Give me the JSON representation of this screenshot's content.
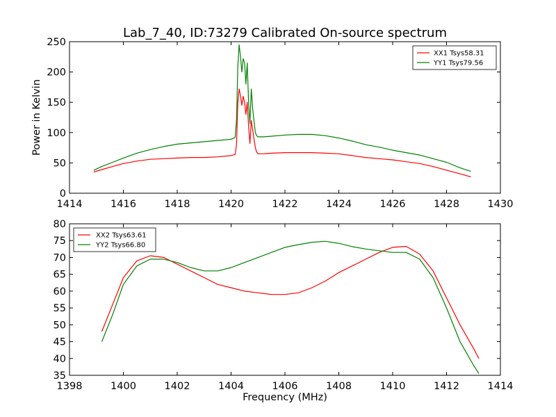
{
  "chart_data": [
    {
      "type": "line",
      "title": "Lab_7_40, ID:73279 Calibrated On-source spectrum",
      "xlabel": "",
      "ylabel": "Power in Kelvin",
      "xlim": [
        1414,
        1430
      ],
      "ylim": [
        0,
        250
      ],
      "xticks": [
        "1414",
        "1416",
        "1418",
        "1420",
        "1422",
        "1424",
        "1426",
        "1428",
        "1430"
      ],
      "yticks": [
        "0",
        "50",
        "100",
        "150",
        "200",
        "250"
      ],
      "grid": false,
      "legend_position": "top-right",
      "series": [
        {
          "name": "XX1 Tsys58.31",
          "color": "#ff0000",
          "x": [
            1414.9,
            1415.2,
            1415.6,
            1416.0,
            1416.5,
            1417.0,
            1417.5,
            1418.0,
            1418.5,
            1419.0,
            1419.5,
            1420.0,
            1420.15,
            1420.2,
            1420.25,
            1420.3,
            1420.35,
            1420.4,
            1420.45,
            1420.5,
            1420.55,
            1420.6,
            1420.65,
            1420.7,
            1420.75,
            1420.8,
            1420.85,
            1420.9,
            1420.95,
            1421.0,
            1421.2,
            1421.5,
            1422.0,
            1422.5,
            1423.0,
            1423.5,
            1424.0,
            1424.5,
            1425.0,
            1425.5,
            1426.0,
            1426.5,
            1427.0,
            1427.5,
            1428.0,
            1428.5,
            1428.9
          ],
          "y": [
            35,
            39,
            44,
            49,
            53,
            56,
            57,
            58,
            59,
            59,
            60,
            62,
            64,
            80,
            150,
            172,
            160,
            145,
            160,
            150,
            130,
            150,
            110,
            82,
            120,
            105,
            90,
            75,
            68,
            65,
            65,
            66,
            67,
            67,
            67,
            66,
            65,
            62,
            59,
            57,
            55,
            52,
            49,
            44,
            38,
            32,
            27
          ]
        },
        {
          "name": "YY1 Tsys79.56",
          "color": "#008000",
          "x": [
            1414.9,
            1415.2,
            1415.6,
            1416.0,
            1416.5,
            1417.0,
            1417.5,
            1418.0,
            1418.5,
            1419.0,
            1419.5,
            1420.0,
            1420.15,
            1420.2,
            1420.25,
            1420.3,
            1420.35,
            1420.4,
            1420.45,
            1420.5,
            1420.55,
            1420.6,
            1420.65,
            1420.7,
            1420.75,
            1420.8,
            1420.85,
            1420.9,
            1420.95,
            1421.0,
            1421.2,
            1421.5,
            1422.0,
            1422.5,
            1423.0,
            1423.5,
            1424.0,
            1424.5,
            1425.0,
            1425.5,
            1426.0,
            1426.5,
            1427.0,
            1427.5,
            1428.0,
            1428.5,
            1428.9
          ],
          "y": [
            38,
            44,
            51,
            58,
            66,
            72,
            77,
            81,
            83,
            85,
            87,
            89,
            92,
            120,
            210,
            245,
            225,
            200,
            222,
            215,
            180,
            215,
            150,
            115,
            172,
            140,
            120,
            100,
            95,
            93,
            93,
            94,
            96,
            97,
            97,
            95,
            91,
            86,
            80,
            76,
            71,
            67,
            63,
            57,
            51,
            42,
            36
          ]
        }
      ]
    },
    {
      "type": "line",
      "title": "",
      "xlabel": "Frequency (MHz)",
      "ylabel": "",
      "xlim": [
        1398,
        1414
      ],
      "ylim": [
        35,
        80
      ],
      "xticks": [
        "1398",
        "1400",
        "1402",
        "1404",
        "1406",
        "1408",
        "1410",
        "1412",
        "1414"
      ],
      "yticks": [
        "35",
        "40",
        "45",
        "50",
        "55",
        "60",
        "65",
        "70",
        "75",
        "80"
      ],
      "grid": false,
      "legend_position": "top-left",
      "series": [
        {
          "name": "XX2 Tsys63.61",
          "color": "#ff0000",
          "x": [
            1399.2,
            1399.6,
            1400.0,
            1400.5,
            1401.0,
            1401.5,
            1402.0,
            1402.5,
            1403.0,
            1403.5,
            1404.0,
            1404.5,
            1405.0,
            1405.5,
            1406.0,
            1406.5,
            1407.0,
            1407.5,
            1408.0,
            1408.5,
            1409.0,
            1409.5,
            1410.0,
            1410.5,
            1411.0,
            1411.5,
            1412.0,
            1412.5,
            1413.0,
            1413.2
          ],
          "y": [
            48,
            56,
            64,
            69,
            70.5,
            70,
            68,
            66,
            64,
            62,
            61,
            60,
            59.5,
            59,
            59,
            59.5,
            61,
            63,
            65.5,
            67.5,
            69.5,
            71.5,
            73,
            73.3,
            71,
            66,
            58,
            50,
            43,
            40
          ]
        },
        {
          "name": "YY2 Tsys66.80",
          "color": "#008000",
          "x": [
            1399.2,
            1399.6,
            1400.0,
            1400.5,
            1401.0,
            1401.5,
            1402.0,
            1402.5,
            1403.0,
            1403.5,
            1404.0,
            1404.5,
            1405.0,
            1405.5,
            1406.0,
            1406.5,
            1407.0,
            1407.5,
            1408.0,
            1408.5,
            1409.0,
            1409.5,
            1410.0,
            1410.5,
            1411.0,
            1411.5,
            1412.0,
            1412.5,
            1413.0,
            1413.2
          ],
          "y": [
            45,
            53,
            62,
            67.5,
            69.5,
            69.5,
            68.5,
            67,
            66,
            66,
            67,
            68.5,
            70,
            71.5,
            73,
            73.8,
            74.5,
            74.8,
            74.2,
            73.2,
            72.5,
            72,
            71.5,
            71.5,
            69.5,
            64,
            55,
            45,
            38,
            35.5
          ]
        }
      ]
    }
  ]
}
